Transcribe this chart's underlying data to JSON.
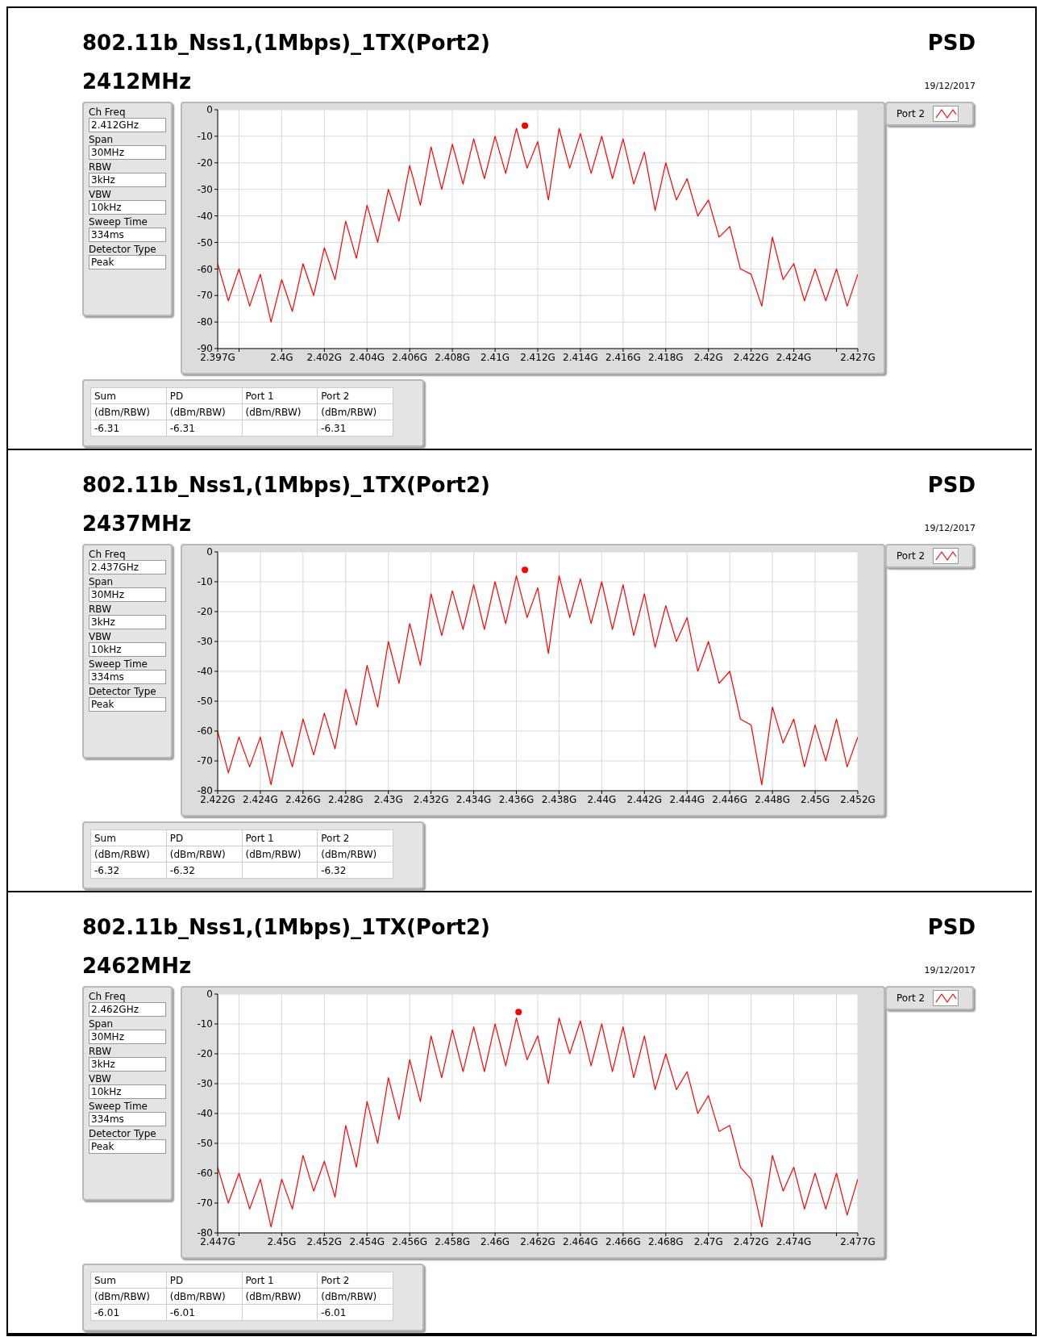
{
  "chart_data": [
    {
      "type": "line",
      "title": "802.11b_Nss1,(1Mbps)_1TX(Port2)",
      "subtitle": "2412MHz",
      "legend": "top right",
      "grid": true,
      "marker": "none",
      "annotations": [
        "PSD",
        "19/12/2017",
        "Ch Freq",
        "2.412GHz",
        "Span",
        "30MHz",
        "RBW",
        "3kHz",
        "VBW",
        "10kHz",
        "Sweep Time",
        "334ms",
        "Detector Type",
        "Peak",
        "Sum",
        "PD",
        "Port 1",
        "Port 2",
        "(dBm/RBW)",
        "(dBm/RBW)",
        "(dBm/RBW)",
        "(dBm/RBW)",
        "-6.31",
        "-6.31",
        "-6.31"
      ],
      "xlim": [
        2.397,
        2.427
      ],
      "xticks": [
        {
          "value": 2.397,
          "label": "2.397G"
        },
        {
          "value": 2.398,
          "label": null
        },
        {
          "value": 2.4,
          "label": "2.4G"
        },
        {
          "value": 2.402,
          "label": "2.402G"
        },
        {
          "value": 2.404,
          "label": "2.404G"
        },
        {
          "value": 2.406,
          "label": "2.406G"
        },
        {
          "value": 2.408,
          "label": "2.408G"
        },
        {
          "value": 2.41,
          "label": "2.41G"
        },
        {
          "value": 2.412,
          "label": "2.412G"
        },
        {
          "value": 2.414,
          "label": "2.414G"
        },
        {
          "value": 2.416,
          "label": "2.416G"
        },
        {
          "value": 2.418,
          "label": "2.418G"
        },
        {
          "value": 2.42,
          "label": "2.42G"
        },
        {
          "value": 2.422,
          "label": "2.422G"
        },
        {
          "value": 2.424,
          "label": "2.424G"
        },
        {
          "value": 2.426,
          "label": null
        },
        {
          "value": 2.427,
          "label": "2.427G"
        }
      ],
      "ylim": [
        -90,
        0
      ],
      "yticks": [
        -90,
        -80,
        -70,
        -60,
        -50,
        -40,
        -30,
        -20,
        -10,
        0
      ],
      "x": [
        2.397,
        2.3975,
        2.398,
        2.3985,
        2.399,
        2.3995,
        2.4,
        2.4005,
        2.401,
        2.4015,
        2.402,
        2.4025,
        2.403,
        2.4035,
        2.404,
        2.4045,
        2.405,
        2.4055,
        2.406,
        2.4065,
        2.407,
        2.4075,
        2.408,
        2.4085,
        2.409,
        2.4095,
        2.41,
        2.4105,
        2.411,
        2.4115,
        2.412,
        2.4125,
        2.413,
        2.4135,
        2.414,
        2.4145,
        2.415,
        2.4155,
        2.416,
        2.4165,
        2.417,
        2.4175,
        2.418,
        2.4185,
        2.419,
        2.4195,
        2.42,
        2.4205,
        2.421,
        2.4215,
        2.422,
        2.4225,
        2.423,
        2.4235,
        2.424,
        2.4245,
        2.425,
        2.4255,
        2.426,
        2.4265,
        2.427
      ],
      "series": [
        {
          "name": "Port 2",
          "color": "#ff0000",
          "values": [
            -58,
            -72,
            -60,
            -74,
            -62,
            -80,
            -64,
            -76,
            -58,
            -70,
            -52,
            -64,
            -42,
            -56,
            -36,
            -50,
            -30,
            -42,
            -21,
            -36,
            -14,
            -30,
            -13,
            -28,
            -11,
            -26,
            -10,
            -24,
            -7,
            -22,
            -12,
            -34,
            -7,
            -22,
            -9,
            -24,
            -10,
            -26,
            -11,
            -28,
            -16,
            -38,
            -20,
            -34,
            -26,
            -40,
            -34,
            -48,
            -44,
            -60,
            -62,
            -74,
            -48,
            -64,
            -58,
            -72,
            -60,
            -72,
            -60,
            -74,
            -62
          ]
        },
        {
          "type": "scatter",
          "marker": "circle",
          "color": "#ff0000",
          "x": [
            2.4114
          ],
          "values": [
            -6
          ]
        }
      ]
    },
    {
      "type": "line",
      "title": "802.11b_Nss1,(1Mbps)_1TX(Port2)",
      "subtitle": "2437MHz",
      "legend": "top right",
      "grid": true,
      "marker": "none",
      "annotations": [
        "PSD",
        "19/12/2017",
        "Ch Freq",
        "2.437GHz",
        "Span",
        "30MHz",
        "RBW",
        "3kHz",
        "VBW",
        "10kHz",
        "Sweep Time",
        "334ms",
        "Detector Type",
        "Peak",
        "Sum",
        "PD",
        "Port 1",
        "Port 2",
        "(dBm/RBW)",
        "(dBm/RBW)",
        "(dBm/RBW)",
        "(dBm/RBW)",
        "-6.32",
        "-6.32",
        "-6.32"
      ],
      "xlim": [
        2.422,
        2.452
      ],
      "xticks": [
        {
          "value": 2.422,
          "label": "2.422G"
        },
        {
          "value": 2.424,
          "label": "2.424G"
        },
        {
          "value": 2.426,
          "label": "2.426G"
        },
        {
          "value": 2.428,
          "label": "2.428G"
        },
        {
          "value": 2.43,
          "label": "2.43G"
        },
        {
          "value": 2.432,
          "label": "2.432G"
        },
        {
          "value": 2.434,
          "label": "2.434G"
        },
        {
          "value": 2.436,
          "label": "2.436G"
        },
        {
          "value": 2.438,
          "label": "2.438G"
        },
        {
          "value": 2.44,
          "label": "2.44G"
        },
        {
          "value": 2.442,
          "label": "2.442G"
        },
        {
          "value": 2.444,
          "label": "2.444G"
        },
        {
          "value": 2.446,
          "label": "2.446G"
        },
        {
          "value": 2.448,
          "label": "2.448G"
        },
        {
          "value": 2.45,
          "label": "2.45G"
        },
        {
          "value": 2.452,
          "label": "2.452G"
        }
      ],
      "ylim": [
        -80,
        0
      ],
      "yticks": [
        -80,
        -70,
        -60,
        -50,
        -40,
        -30,
        -20,
        -10,
        0
      ],
      "x": [
        2.422,
        2.4225,
        2.423,
        2.4235,
        2.424,
        2.4245,
        2.425,
        2.4255,
        2.426,
        2.4265,
        2.427,
        2.4275,
        2.428,
        2.4285,
        2.429,
        2.4295,
        2.43,
        2.4305,
        2.431,
        2.4315,
        2.432,
        2.4325,
        2.433,
        2.4335,
        2.434,
        2.4345,
        2.435,
        2.4355,
        2.436,
        2.4365,
        2.437,
        2.4375,
        2.438,
        2.4385,
        2.439,
        2.4395,
        2.44,
        2.4405,
        2.441,
        2.4415,
        2.442,
        2.4425,
        2.443,
        2.4435,
        2.444,
        2.4445,
        2.445,
        2.4455,
        2.446,
        2.4465,
        2.447,
        2.4475,
        2.448,
        2.4485,
        2.449,
        2.4495,
        2.45,
        2.4505,
        2.451,
        2.4515,
        2.452
      ],
      "series": [
        {
          "name": "Port 2",
          "color": "#ff0000",
          "values": [
            -60,
            -74,
            -62,
            -72,
            -62,
            -78,
            -60,
            -72,
            -56,
            -68,
            -54,
            -66,
            -46,
            -58,
            -38,
            -52,
            -30,
            -44,
            -24,
            -38,
            -14,
            -28,
            -13,
            -26,
            -11,
            -26,
            -10,
            -24,
            -8,
            -22,
            -12,
            -34,
            -8,
            -22,
            -9,
            -24,
            -10,
            -26,
            -11,
            -28,
            -14,
            -32,
            -18,
            -30,
            -22,
            -40,
            -30,
            -44,
            -40,
            -56,
            -58,
            -78,
            -52,
            -64,
            -56,
            -72,
            -58,
            -70,
            -56,
            -72,
            -62
          ]
        },
        {
          "type": "scatter",
          "marker": "circle",
          "color": "#ff0000",
          "x": [
            2.4364
          ],
          "values": [
            -6
          ]
        }
      ]
    },
    {
      "type": "line",
      "title": "802.11b_Nss1,(1Mbps)_1TX(Port2)",
      "subtitle": "2462MHz",
      "legend": "top right",
      "grid": true,
      "marker": "none",
      "annotations": [
        "PSD",
        "19/12/2017",
        "Ch Freq",
        "2.462GHz",
        "Span",
        "30MHz",
        "RBW",
        "3kHz",
        "VBW",
        "10kHz",
        "Sweep Time",
        "334ms",
        "Detector Type",
        "Peak",
        "Sum",
        "PD",
        "Port 1",
        "Port 2",
        "(dBm/RBW)",
        "(dBm/RBW)",
        "(dBm/RBW)",
        "(dBm/RBW)",
        "-6.01",
        "-6.01",
        "-6.01"
      ],
      "xlim": [
        2.447,
        2.477
      ],
      "xticks": [
        {
          "value": 2.447,
          "label": "2.447G"
        },
        {
          "value": 2.448,
          "label": null
        },
        {
          "value": 2.45,
          "label": "2.45G"
        },
        {
          "value": 2.452,
          "label": "2.452G"
        },
        {
          "value": 2.454,
          "label": "2.454G"
        },
        {
          "value": 2.456,
          "label": "2.456G"
        },
        {
          "value": 2.458,
          "label": "2.458G"
        },
        {
          "value": 2.46,
          "label": "2.46G"
        },
        {
          "value": 2.462,
          "label": "2.462G"
        },
        {
          "value": 2.464,
          "label": "2.464G"
        },
        {
          "value": 2.466,
          "label": "2.466G"
        },
        {
          "value": 2.468,
          "label": "2.468G"
        },
        {
          "value": 2.47,
          "label": "2.47G"
        },
        {
          "value": 2.472,
          "label": "2.472G"
        },
        {
          "value": 2.474,
          "label": "2.474G"
        },
        {
          "value": 2.476,
          "label": null
        },
        {
          "value": 2.477,
          "label": "2.477G"
        }
      ],
      "ylim": [
        -80,
        0
      ],
      "yticks": [
        -80,
        -70,
        -60,
        -50,
        -40,
        -30,
        -20,
        -10,
        0
      ],
      "x": [
        2.447,
        2.4475,
        2.448,
        2.4485,
        2.449,
        2.4495,
        2.45,
        2.4505,
        2.451,
        2.4515,
        2.452,
        2.4525,
        2.453,
        2.4535,
        2.454,
        2.4545,
        2.455,
        2.4555,
        2.456,
        2.4565,
        2.457,
        2.4575,
        2.458,
        2.4585,
        2.459,
        2.4595,
        2.46,
        2.4605,
        2.461,
        2.4615,
        2.462,
        2.4625,
        2.463,
        2.4635,
        2.464,
        2.4645,
        2.465,
        2.4655,
        2.466,
        2.4665,
        2.467,
        2.4675,
        2.468,
        2.4685,
        2.469,
        2.4695,
        2.47,
        2.4705,
        2.471,
        2.4715,
        2.472,
        2.4725,
        2.473,
        2.4735,
        2.474,
        2.4745,
        2.475,
        2.4755,
        2.476,
        2.4765,
        2.477
      ],
      "series": [
        {
          "name": "Port 2",
          "color": "#ff0000",
          "values": [
            -58,
            -70,
            -60,
            -72,
            -62,
            -78,
            -62,
            -72,
            -54,
            -66,
            -56,
            -68,
            -44,
            -58,
            -36,
            -50,
            -28,
            -42,
            -22,
            -36,
            -14,
            -28,
            -12,
            -26,
            -11,
            -26,
            -10,
            -24,
            -8,
            -22,
            -14,
            -30,
            -8,
            -20,
            -9,
            -24,
            -10,
            -26,
            -11,
            -28,
            -14,
            -32,
            -20,
            -32,
            -26,
            -40,
            -34,
            -46,
            -44,
            -58,
            -62,
            -78,
            -54,
            -66,
            -58,
            -72,
            -60,
            -72,
            -60,
            -74,
            -62
          ]
        },
        {
          "type": "scatter",
          "marker": "circle",
          "color": "#ff0000",
          "x": [
            2.4611
          ],
          "values": [
            -6
          ]
        }
      ]
    }
  ]
}
